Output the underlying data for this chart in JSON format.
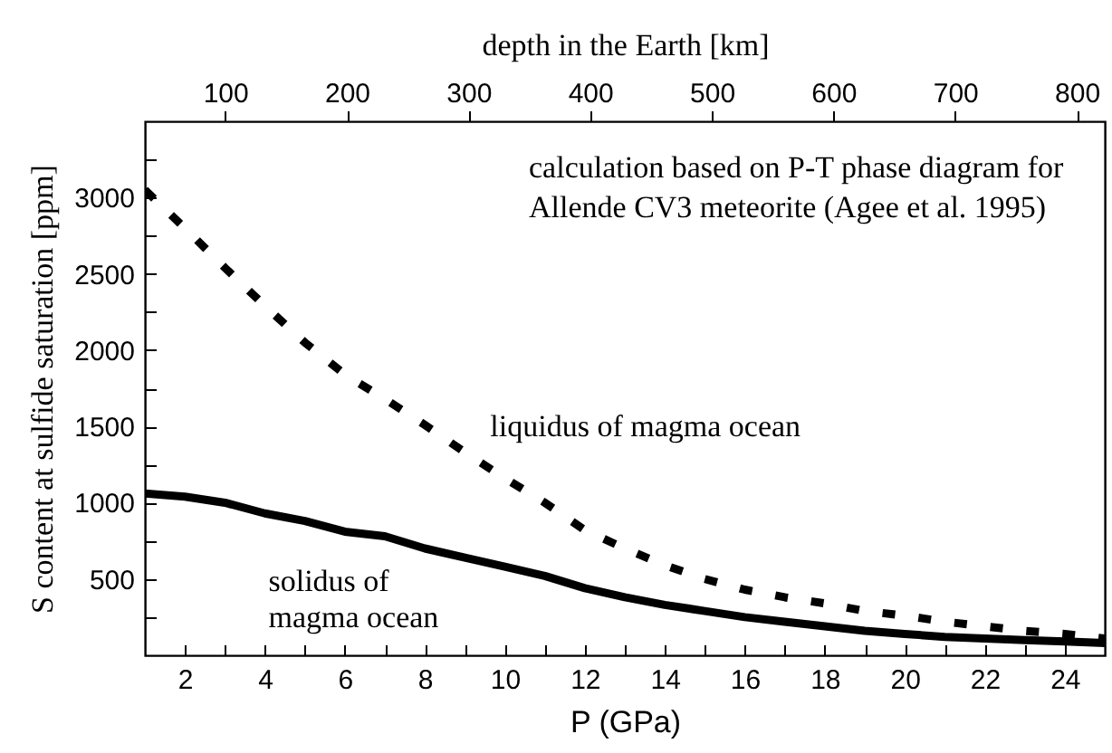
{
  "chart_data": {
    "type": "line",
    "xlabel": "P (GPa)",
    "ylabel": "S content at sulfide saturation  [ppm]",
    "x2label": "depth in the Earth [km]",
    "annotations": [
      "calculation based on P-T phase diagram for Allende CV3 meteorite (Agee et al. 1995)"
    ],
    "x": [
      1,
      2,
      3,
      4,
      5,
      6,
      7,
      8,
      9,
      10,
      11,
      12,
      13,
      14,
      15,
      16,
      17,
      18,
      19,
      20,
      21,
      22,
      23,
      24,
      25
    ],
    "series": [
      {
        "name": "liquidus of magma ocean",
        "color": "#000000",
        "line_style": "dashed",
        "values": [
          3050,
          2800,
          2540,
          2290,
          2050,
          1840,
          1680,
          1510,
          1330,
          1160,
          1000,
          820,
          700,
          590,
          500,
          430,
          380,
          340,
          290,
          260,
          220,
          190,
          160,
          140,
          110
        ]
      },
      {
        "name": "solidus of magma ocean",
        "color": "#000000",
        "line_style": "solid",
        "values": [
          1060,
          1040,
          1000,
          930,
          880,
          810,
          780,
          700,
          640,
          580,
          520,
          440,
          380,
          330,
          290,
          250,
          220,
          190,
          160,
          140,
          120,
          110,
          100,
          90,
          80
        ]
      }
    ],
    "xlim": [
      1,
      25
    ],
    "xticks": [
      2,
      4,
      6,
      8,
      10,
      12,
      14,
      16,
      18,
      20,
      22,
      24,
      {
        "value": 3,
        "label": null
      },
      {
        "value": 5,
        "label": null
      },
      {
        "value": 7,
        "label": null
      },
      {
        "value": 9,
        "label": null
      },
      {
        "value": 11,
        "label": null
      },
      {
        "value": 13,
        "label": null
      },
      {
        "value": 15,
        "label": null
      },
      {
        "value": 17,
        "label": null
      },
      {
        "value": 19,
        "label": null
      },
      {
        "value": 21,
        "label": null
      },
      {
        "value": 23,
        "label": null
      }
    ],
    "ylim": [
      0,
      3500
    ],
    "yticks": [
      500,
      1000,
      1500,
      2000,
      2500,
      3000,
      {
        "value": 250,
        "label": null
      },
      {
        "value": 750,
        "label": null
      },
      {
        "value": 1250,
        "label": null
      },
      {
        "value": 1750,
        "label": null
      },
      {
        "value": 2250,
        "label": null
      },
      {
        "value": 2750,
        "label": null
      },
      {
        "value": 3250,
        "label": null
      }
    ],
    "x2lim": [
      34,
      823
    ],
    "x2ticks": [
      100,
      200,
      300,
      400,
      500,
      600,
      700,
      800
    ],
    "grid": false,
    "marker": "none"
  }
}
